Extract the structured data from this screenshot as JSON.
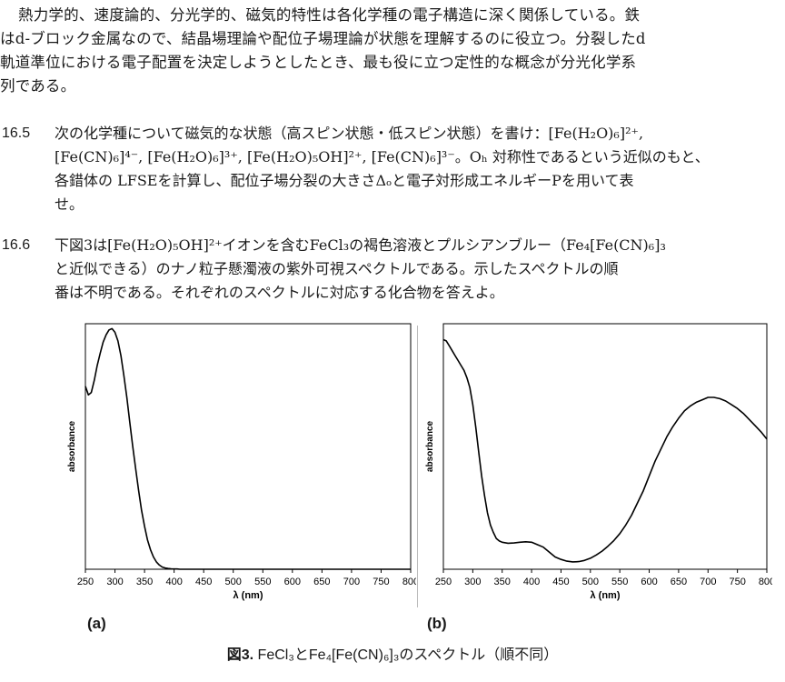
{
  "intro": {
    "line1": "熱力学的、速度論的、分光学的、磁気的特性は各化学種の電子構造に深く関係している。鉄",
    "line2": "はd-ブロック金属なので、結晶場理論や配位子場理論が状態を理解するのに役立つ。分裂したd",
    "line3": "軌道準位における電子配置を決定しようとしたとき、最も役に立つ定性的な概念が分光化学系",
    "line4": "列である。"
  },
  "q165": {
    "number": "16.5",
    "line1": "次の化学種について磁気的な状態（高スピン状態・低スピン状態）を書け：[Fe(H₂O)₆]²⁺,",
    "line2": "[Fe(CN)₆]⁴⁻, [Fe(H₂O)₆]³⁺, [Fe(H₂O)₅OH]²⁺, [Fe(CN)₆]³⁻。Oₕ 対称性であるという近似のもと、",
    "line3": "各錯体の LFSEを計算し、配位子場分裂の大きさΔₒと電子対形成エネルギーPを用いて表",
    "line4": "せ。"
  },
  "q166": {
    "number": "16.6",
    "line1": "下図3は[Fe(H₂O)₅OH]²⁺イオンを含むFeCl₃の褐色溶液とプルシアンブルー（Fe₄[Fe(CN)₆]₃",
    "line2": "と近似できる）のナノ粒子懸濁液の紫外可視スペクトルである。示したスペクトルの順",
    "line3": "番は不明である。それぞれのスペクトルに対応する化合物を答えよ。"
  },
  "panel_a_label": "(a)",
  "panel_b_label": "(b)",
  "caption": {
    "prefix": "図3.",
    "text": " FeCl₃とFe₄[Fe(CN)₆]₃のスペクトル（順不同）"
  },
  "chart_data": [
    {
      "type": "line",
      "panel": "(a)",
      "xlabel": "λ (nm)",
      "ylabel": "absorbance",
      "xlim": [
        250,
        800
      ],
      "ylim": [
        0,
        1
      ],
      "x_ticks": [
        250,
        300,
        350,
        400,
        450,
        500,
        550,
        600,
        650,
        700,
        750,
        800
      ],
      "y_ticks_labeled": false,
      "grid": false,
      "series": [
        {
          "color": "#000000",
          "x": [
            250,
            255,
            260,
            265,
            270,
            275,
            280,
            285,
            290,
            295,
            300,
            305,
            310,
            315,
            320,
            325,
            330,
            335,
            340,
            345,
            350,
            355,
            360,
            365,
            370,
            375,
            380,
            385,
            390,
            395,
            400,
            405,
            410,
            420,
            450,
            500,
            550,
            600,
            650,
            700,
            750,
            800
          ],
          "y": [
            0.745,
            0.71,
            0.72,
            0.77,
            0.83,
            0.88,
            0.925,
            0.955,
            0.975,
            0.98,
            0.965,
            0.93,
            0.87,
            0.79,
            0.7,
            0.6,
            0.5,
            0.41,
            0.32,
            0.24,
            0.175,
            0.12,
            0.08,
            0.05,
            0.03,
            0.017,
            0.009,
            0.005,
            0.003,
            0.002,
            0.001,
            0.001,
            0.0,
            0.0,
            0.0,
            0.0,
            0.0,
            0.0,
            0.0,
            0.0,
            0.0,
            0.0
          ]
        }
      ]
    },
    {
      "type": "line",
      "panel": "(b)",
      "xlabel": "λ (nm)",
      "ylabel": "absorbance",
      "xlim": [
        250,
        800
      ],
      "ylim": [
        0,
        1
      ],
      "x_ticks": [
        250,
        300,
        350,
        400,
        450,
        500,
        550,
        600,
        650,
        700,
        750,
        800
      ],
      "y_ticks_labeled": false,
      "grid": false,
      "series": [
        {
          "color": "#000000",
          "x": [
            250,
            255,
            260,
            265,
            270,
            275,
            280,
            285,
            290,
            295,
            300,
            305,
            310,
            315,
            320,
            325,
            330,
            335,
            340,
            345,
            350,
            360,
            370,
            380,
            390,
            400,
            410,
            420,
            430,
            440,
            450,
            460,
            470,
            480,
            490,
            500,
            510,
            520,
            530,
            540,
            550,
            560,
            570,
            580,
            590,
            600,
            610,
            620,
            630,
            640,
            650,
            660,
            670,
            680,
            690,
            700,
            710,
            720,
            730,
            740,
            750,
            760,
            770,
            780,
            790,
            800
          ],
          "y": [
            0.935,
            0.93,
            0.91,
            0.89,
            0.87,
            0.85,
            0.83,
            0.81,
            0.78,
            0.74,
            0.67,
            0.58,
            0.48,
            0.38,
            0.3,
            0.23,
            0.18,
            0.15,
            0.125,
            0.115,
            0.11,
            0.106,
            0.107,
            0.11,
            0.112,
            0.11,
            0.1,
            0.09,
            0.07,
            0.05,
            0.04,
            0.033,
            0.03,
            0.031,
            0.036,
            0.045,
            0.058,
            0.074,
            0.094,
            0.117,
            0.145,
            0.18,
            0.22,
            0.27,
            0.32,
            0.38,
            0.44,
            0.49,
            0.54,
            0.58,
            0.615,
            0.645,
            0.665,
            0.68,
            0.69,
            0.7,
            0.7,
            0.695,
            0.685,
            0.67,
            0.655,
            0.635,
            0.61,
            0.585,
            0.56,
            0.53
          ]
        }
      ]
    }
  ]
}
